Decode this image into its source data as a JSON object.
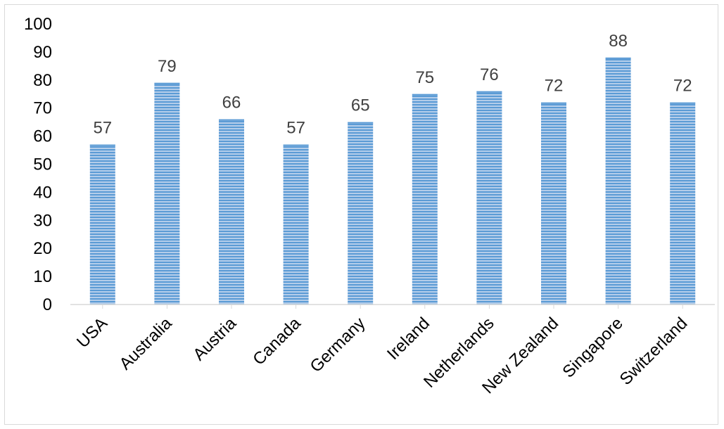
{
  "chart_data": {
    "type": "bar",
    "categories": [
      "USA",
      "Australia",
      "Austria",
      "Canada",
      "Germany",
      "Ireland",
      "Netherlands",
      "New Zealand",
      "Singapore",
      "Switzerland"
    ],
    "values": [
      57,
      79,
      66,
      57,
      65,
      75,
      76,
      72,
      88,
      72
    ],
    "title": "",
    "xlabel": "",
    "ylabel": "",
    "ylim": [
      0,
      100
    ],
    "yticks": [
      0,
      10,
      20,
      30,
      40,
      50,
      60,
      70,
      80,
      90,
      100
    ],
    "grid": false,
    "legend": "none",
    "data_labels": true,
    "bar_color": "#5b9bd5",
    "bar_pattern": "horizontal-stripes"
  }
}
